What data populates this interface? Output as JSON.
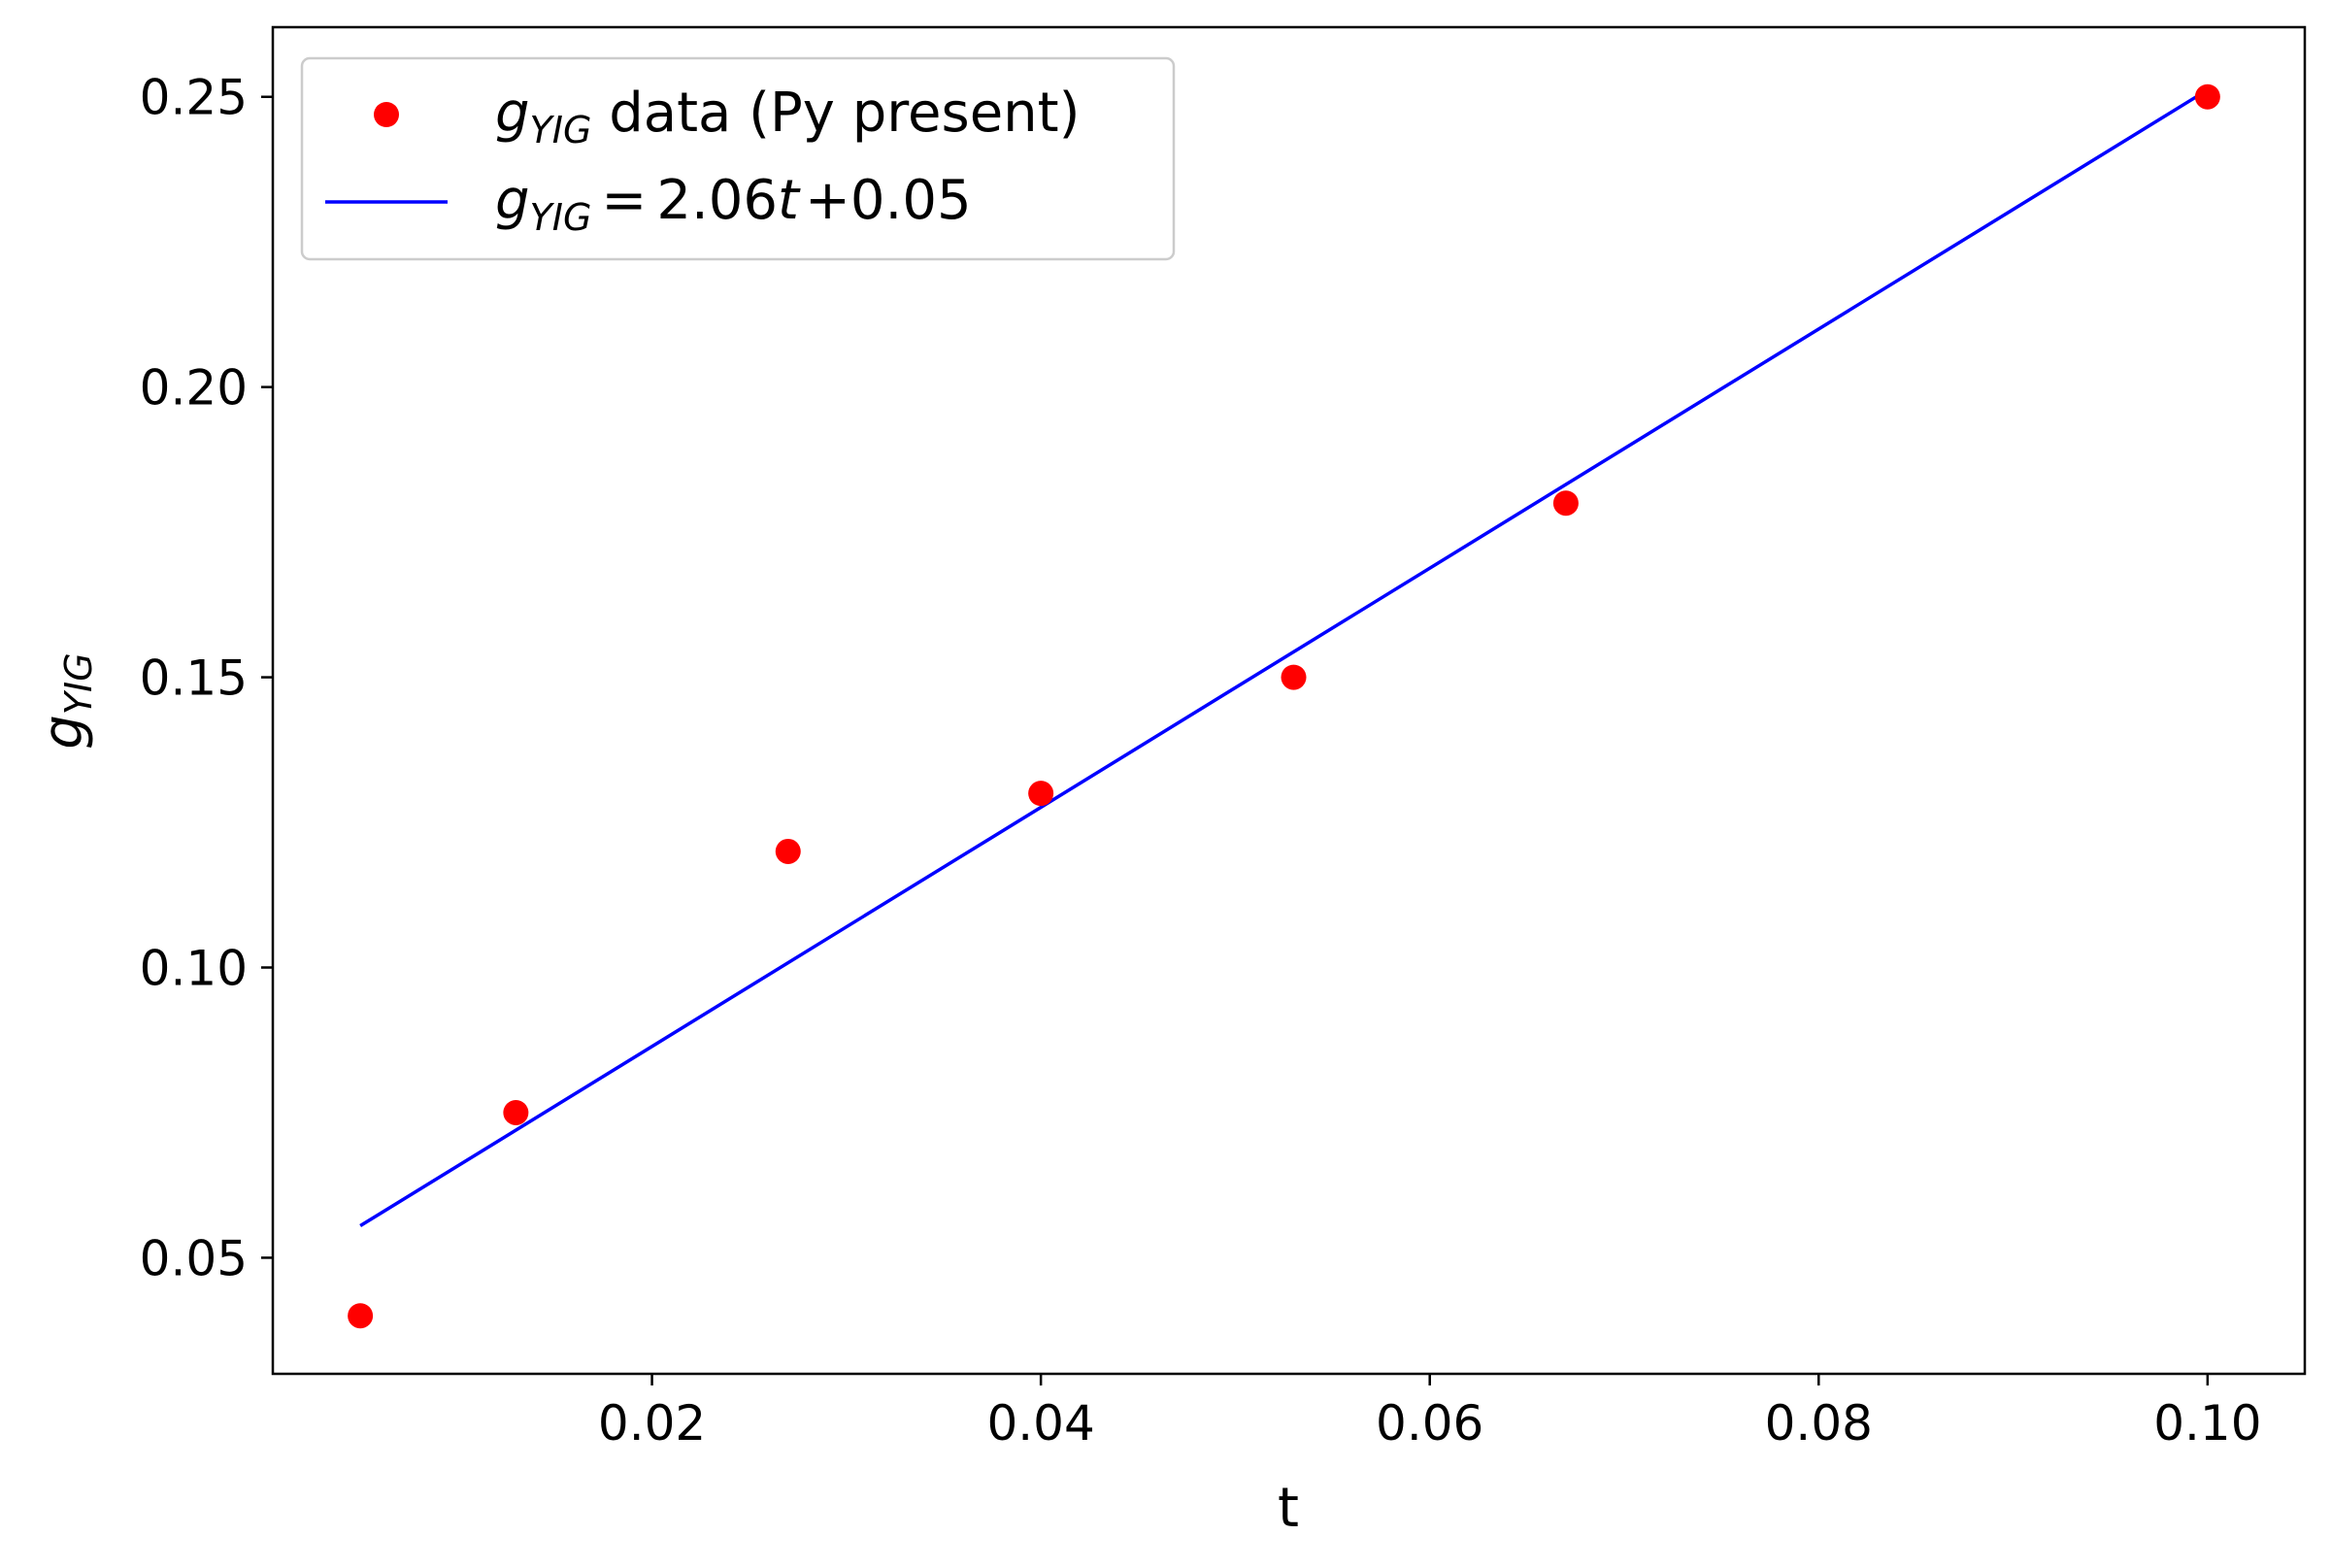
{
  "chart_data": {
    "type": "scatter",
    "xlabel": "t",
    "ylabel": {
      "main": "g",
      "sub": "YIG"
    },
    "xlim": [
      0.0005,
      0.105
    ],
    "ylim": [
      0.03,
      0.262
    ],
    "xticks": [
      0.02,
      0.04,
      0.06,
      0.08,
      0.1
    ],
    "xtick_labels": [
      "0.02",
      "0.04",
      "0.06",
      "0.08",
      "0.10"
    ],
    "yticks": [
      0.05,
      0.1,
      0.15,
      0.2,
      0.25
    ],
    "ytick_labels": [
      "0.05",
      "0.10",
      "0.15",
      "0.20",
      "0.25"
    ],
    "grid": false,
    "legend_position": "top-left",
    "series": [
      {
        "kind": "scatter",
        "color": "#ff0000",
        "legend": {
          "var": "g",
          "sub": "YIG",
          "text": " data (Py present)"
        },
        "x": [
          0.005,
          0.013,
          0.027,
          0.04,
          0.053,
          0.067,
          0.1
        ],
        "y": [
          0.04,
          0.075,
          0.12,
          0.13,
          0.15,
          0.18,
          0.25
        ]
      },
      {
        "kind": "line",
        "color": "#0000ff",
        "legend": {
          "var": "g",
          "sub": "YIG",
          "eq": "=",
          "rhs1": "2.06",
          "rhs_var": "t",
          "rhs2": "+0.05"
        },
        "x": [
          0.005,
          0.1
        ],
        "y": [
          0.0555,
          0.2512
        ]
      }
    ]
  }
}
